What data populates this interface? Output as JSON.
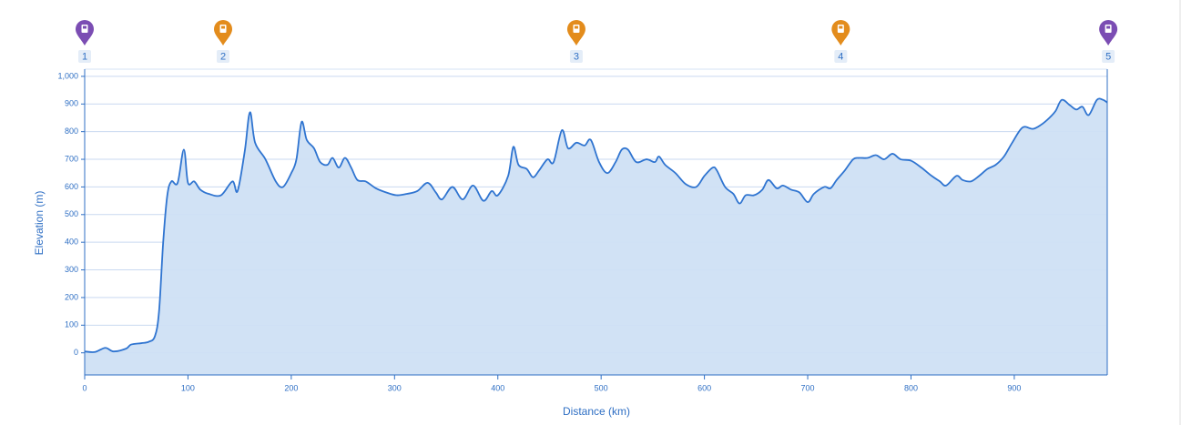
{
  "chart_data": {
    "type": "area",
    "x_label": "Distance (km)",
    "y_label": "Elevation (m)",
    "xlim": [
      0,
      990
    ],
    "ylim": [
      -80,
      1026
    ],
    "xticks": [
      0,
      100,
      200,
      300,
      400,
      500,
      600,
      700,
      800,
      900
    ],
    "yticks": [
      0,
      100,
      200,
      300,
      400,
      500,
      600,
      700,
      800,
      900,
      {
        "value": 1000,
        "label": "1,000"
      }
    ],
    "grid": true,
    "line_color": "#2f74d0",
    "fill_color": "#cfe0f4",
    "x": [
      0,
      10,
      20,
      28,
      40,
      45,
      55,
      62,
      68,
      72,
      76,
      80,
      84,
      90,
      96,
      100,
      106,
      112,
      120,
      132,
      143,
      148,
      155,
      160,
      165,
      175,
      185,
      192,
      200,
      205,
      210,
      215,
      222,
      228,
      235,
      240,
      246,
      252,
      258,
      264,
      272,
      282,
      292,
      302,
      312,
      322,
      332,
      340,
      346,
      356,
      366,
      376,
      386,
      394,
      400,
      410,
      415,
      420,
      428,
      434,
      440,
      448,
      454,
      462,
      468,
      476,
      484,
      490,
      498,
      506,
      514,
      520,
      526,
      534,
      544,
      552,
      556,
      562,
      572,
      582,
      592,
      600,
      608,
      612,
      620,
      628,
      634,
      640,
      648,
      656,
      662,
      670,
      676,
      684,
      692,
      700,
      706,
      716,
      722,
      728,
      736,
      744,
      750,
      758,
      766,
      774,
      782,
      790,
      800,
      810,
      820,
      828,
      834,
      844,
      850,
      858,
      866,
      874,
      882,
      890,
      898,
      908,
      918,
      926,
      934,
      940,
      946,
      954,
      960,
      966,
      972,
      980,
      986,
      990
    ],
    "values": [
      5,
      3,
      18,
      5,
      15,
      30,
      35,
      40,
      60,
      150,
      400,
      570,
      620,
      615,
      735,
      615,
      620,
      590,
      575,
      570,
      620,
      585,
      730,
      870,
      760,
      700,
      620,
      600,
      650,
      700,
      835,
      770,
      740,
      690,
      680,
      705,
      670,
      705,
      670,
      625,
      620,
      595,
      580,
      570,
      575,
      585,
      615,
      580,
      555,
      600,
      555,
      605,
      550,
      585,
      570,
      640,
      745,
      680,
      665,
      635,
      660,
      700,
      690,
      805,
      740,
      760,
      750,
      770,
      690,
      650,
      690,
      735,
      735,
      690,
      700,
      690,
      710,
      680,
      650,
      610,
      600,
      640,
      670,
      660,
      600,
      575,
      540,
      570,
      570,
      590,
      625,
      595,
      605,
      590,
      580,
      545,
      575,
      600,
      595,
      625,
      660,
      700,
      705,
      705,
      715,
      700,
      720,
      700,
      695,
      670,
      640,
      620,
      605,
      640,
      625,
      620,
      640,
      665,
      680,
      710,
      760,
      815,
      810,
      825,
      850,
      875,
      915,
      895,
      880,
      890,
      860,
      915,
      915,
      905
    ],
    "waypoints": {
      "x": [
        0,
        134,
        476,
        732,
        991
      ],
      "labels": [
        "1",
        "2",
        "3",
        "4",
        "5"
      ],
      "colors": [
        "#7b4db3",
        "#e38c1c",
        "#e38c1c",
        "#e38c1c",
        "#7b4db3"
      ]
    }
  }
}
